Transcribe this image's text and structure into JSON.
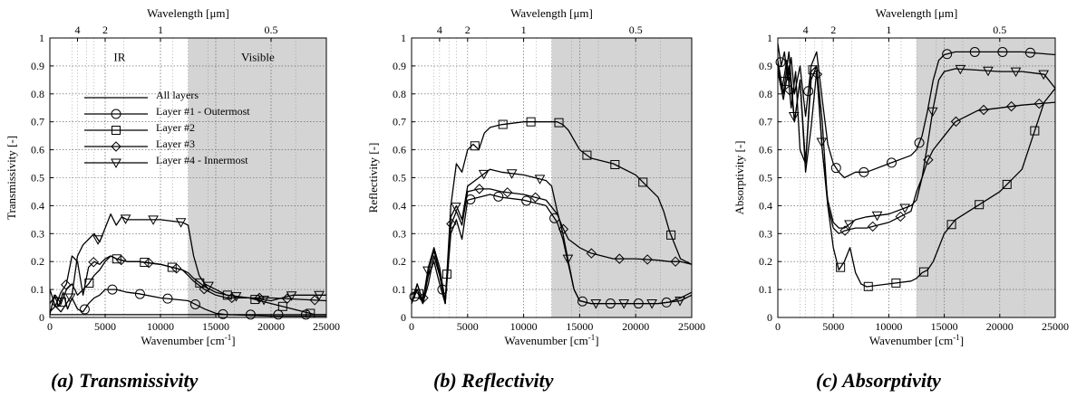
{
  "figure": {
    "captions": [
      "(a) Transmissivity",
      "(b) Reflectivity",
      "(c) Absorptivity"
    ]
  },
  "chart_data": [
    {
      "type": "line",
      "xlabel": "Wavenumber [cm-1]",
      "x2label": "Wavelength [μm]",
      "ylabel": "Transmissivity [-]",
      "xlim": [
        0,
        25000
      ],
      "ylim": [
        0,
        1
      ],
      "xticks": [
        "0",
        "5000",
        "10000",
        "15000",
        "20000",
        "25000"
      ],
      "yticks": [
        "0",
        "0.1",
        "0.2",
        "0.3",
        "0.4",
        "0.5",
        "0.6",
        "0.7",
        "0.8",
        "0.9",
        "1"
      ],
      "top_ticks": [
        {
          "label": "4",
          "um": 4
        },
        {
          "label": "2",
          "um": 2
        },
        {
          "label": "1",
          "um": 1
        },
        {
          "label": "0.5",
          "um": 0.5
        }
      ],
      "grid": true,
      "shaded_region": {
        "from": 12500,
        "to": 25000
      },
      "region_labels": [
        {
          "text": "IR",
          "x": 6300,
          "y": 0.93
        },
        {
          "text": "Visible",
          "x": 18800,
          "y": 0.93
        }
      ],
      "legend": {
        "placement": "center-left"
      },
      "series": [
        {
          "name": "All layers",
          "marker": "none",
          "x": [
            0,
            500,
            1000,
            2000,
            3000,
            4000,
            5000,
            6000,
            8000,
            10000,
            12000,
            12500,
            13000,
            14000,
            16000,
            20000,
            25000
          ],
          "y": [
            0.01,
            0.01,
            0.01,
            0.01,
            0.01,
            0.01,
            0.01,
            0.01,
            0.01,
            0.01,
            0.01,
            0.01,
            0.01,
            0.01,
            0.01,
            0.005,
            0.005
          ]
        },
        {
          "name": "Layer #1 - Outermost",
          "marker": "circle",
          "x": [
            0,
            400,
            800,
            1200,
            1600,
            2000,
            2500,
            3000,
            3500,
            4000,
            4500,
            5000,
            6000,
            7000,
            8000,
            10000,
            12500,
            13000,
            14000,
            15000,
            16000,
            18000,
            20000,
            22000,
            25000
          ],
          "y": [
            0.01,
            0.08,
            0.04,
            0.09,
            0.03,
            0.07,
            0.03,
            0.02,
            0.05,
            0.07,
            0.08,
            0.1,
            0.1,
            0.09,
            0.085,
            0.07,
            0.06,
            0.05,
            0.03,
            0.015,
            0.01,
            0.01,
            0.01,
            0.01,
            0.01
          ]
        },
        {
          "name": "Layer #2",
          "marker": "square",
          "x": [
            0,
            500,
            1000,
            1500,
            2000,
            2500,
            3000,
            3500,
            4000,
            4500,
            5000,
            5500,
            6000,
            7000,
            8000,
            10000,
            12000,
            12500,
            13000,
            14000,
            15000,
            16000,
            18000,
            20000,
            22000,
            24000,
            25000
          ],
          "y": [
            0.05,
            0.08,
            0.05,
            0.1,
            0.12,
            0.08,
            0.1,
            0.12,
            0.15,
            0.17,
            0.2,
            0.22,
            0.21,
            0.2,
            0.2,
            0.19,
            0.17,
            0.16,
            0.14,
            0.11,
            0.09,
            0.08,
            0.07,
            0.05,
            0.03,
            0.01,
            0.01
          ]
        },
        {
          "name": "Layer #3",
          "marker": "diamond",
          "x": [
            0,
            500,
            1000,
            1500,
            2000,
            2500,
            3000,
            3500,
            4000,
            4500,
            5000,
            5500,
            6000,
            7000,
            8000,
            10000,
            12000,
            12500,
            13000,
            14000,
            15000,
            16000,
            18000,
            20000,
            25000
          ],
          "y": [
            0.1,
            0.04,
            0.09,
            0.12,
            0.22,
            0.2,
            0.08,
            0.18,
            0.2,
            0.19,
            0.21,
            0.22,
            0.21,
            0.2,
            0.2,
            0.19,
            0.17,
            0.15,
            0.13,
            0.1,
            0.08,
            0.07,
            0.07,
            0.07,
            0.06
          ]
        },
        {
          "name": "Layer #4 - Innermost",
          "marker": "triangle-down",
          "x": [
            0,
            500,
            1000,
            1500,
            2000,
            2500,
            3000,
            3500,
            4000,
            4500,
            5000,
            5500,
            6000,
            6500,
            7000,
            8000,
            10000,
            12000,
            12500,
            13000,
            13500,
            14000,
            15000,
            16000,
            18000,
            20000,
            22000,
            25000
          ],
          "y": [
            0.02,
            0.04,
            0.02,
            0.05,
            0.08,
            0.22,
            0.26,
            0.28,
            0.3,
            0.27,
            0.32,
            0.37,
            0.33,
            0.36,
            0.35,
            0.35,
            0.35,
            0.34,
            0.33,
            0.22,
            0.15,
            0.12,
            0.1,
            0.08,
            0.07,
            0.06,
            0.08,
            0.08
          ]
        }
      ]
    },
    {
      "type": "line",
      "xlabel": "Wavenumber [cm-1]",
      "x2label": "Wavelength [μm]",
      "ylabel": "Reflectivity [-]",
      "xlim": [
        0,
        25000
      ],
      "ylim": [
        0,
        1
      ],
      "xticks": [
        "0",
        "5000",
        "10000",
        "15000",
        "20000",
        "25000"
      ],
      "yticks": [
        "0",
        "0.1",
        "0.2",
        "0.3",
        "0.4",
        "0.5",
        "0.6",
        "0.7",
        "0.8",
        "0.9",
        "1"
      ],
      "top_ticks": [
        {
          "label": "4",
          "um": 4
        },
        {
          "label": "2",
          "um": 2
        },
        {
          "label": "1",
          "um": 1
        },
        {
          "label": "0.5",
          "um": 0.5
        }
      ],
      "grid": true,
      "shaded_region": {
        "from": 12500,
        "to": 25000
      },
      "series": [
        {
          "name": "Layer #1 - Outermost",
          "marker": "circle",
          "x": [
            0,
            500,
            1000,
            1500,
            2000,
            2500,
            3000,
            3500,
            4000,
            4500,
            5000,
            6000,
            7000,
            8000,
            10000,
            12000,
            13000,
            13500,
            14000,
            14500,
            15000,
            16000,
            18000,
            20000,
            22000,
            23000,
            24000,
            25000
          ],
          "y": [
            0.05,
            0.1,
            0.05,
            0.12,
            0.22,
            0.15,
            0.05,
            0.3,
            0.35,
            0.28,
            0.42,
            0.43,
            0.44,
            0.43,
            0.42,
            0.4,
            0.34,
            0.28,
            0.19,
            0.1,
            0.06,
            0.05,
            0.05,
            0.05,
            0.05,
            0.055,
            0.07,
            0.09
          ]
        },
        {
          "name": "Layer #2",
          "marker": "square",
          "x": [
            0,
            500,
            1000,
            1500,
            2000,
            2500,
            3000,
            3500,
            4000,
            4500,
            5000,
            5500,
            6000,
            6500,
            7000,
            8000,
            10000,
            12000,
            13000,
            13500,
            14000,
            15000,
            16000,
            18000,
            20000,
            21000,
            22000,
            22500,
            23000,
            24000,
            25000
          ],
          "y": [
            0.08,
            0.1,
            0.05,
            0.15,
            0.2,
            0.12,
            0.05,
            0.4,
            0.55,
            0.52,
            0.6,
            0.62,
            0.6,
            0.66,
            0.68,
            0.69,
            0.7,
            0.7,
            0.7,
            0.69,
            0.67,
            0.6,
            0.57,
            0.55,
            0.51,
            0.47,
            0.43,
            0.38,
            0.31,
            0.21,
            0.19
          ]
        },
        {
          "name": "Layer #3",
          "marker": "diamond",
          "x": [
            0,
            500,
            1000,
            1500,
            2000,
            2500,
            3000,
            3500,
            4000,
            4500,
            5000,
            6000,
            7000,
            8000,
            10000,
            12000,
            13000,
            13500,
            14000,
            15000,
            16000,
            18000,
            20000,
            22000,
            23000,
            24000,
            25000
          ],
          "y": [
            0.05,
            0.12,
            0.06,
            0.16,
            0.24,
            0.16,
            0.05,
            0.33,
            0.38,
            0.33,
            0.45,
            0.46,
            0.46,
            0.45,
            0.44,
            0.42,
            0.37,
            0.32,
            0.28,
            0.25,
            0.23,
            0.21,
            0.21,
            0.205,
            0.2,
            0.2,
            0.19
          ]
        },
        {
          "name": "Layer #4 - Innermost",
          "marker": "triangle-down",
          "x": [
            0,
            500,
            1000,
            1500,
            2000,
            2500,
            3000,
            3500,
            4000,
            4500,
            5000,
            6000,
            7000,
            8000,
            10000,
            12000,
            12500,
            13000,
            13500,
            14000,
            14500,
            15000,
            16000,
            18000,
            20000,
            22000,
            24000,
            25000
          ],
          "y": [
            0.05,
            0.12,
            0.06,
            0.18,
            0.25,
            0.18,
            0.06,
            0.36,
            0.4,
            0.35,
            0.47,
            0.5,
            0.53,
            0.52,
            0.51,
            0.49,
            0.47,
            0.38,
            0.3,
            0.2,
            0.1,
            0.06,
            0.05,
            0.05,
            0.05,
            0.05,
            0.06,
            0.08
          ]
        }
      ]
    },
    {
      "type": "line",
      "xlabel": "Wavenumber [cm-1]",
      "x2label": "Wavelength [μm]",
      "ylabel": "Absorptivity [-]",
      "xlim": [
        0,
        25000
      ],
      "ylim": [
        0,
        1
      ],
      "xticks": [
        "0",
        "5000",
        "10000",
        "15000",
        "20000",
        "25000"
      ],
      "yticks": [
        "0",
        "0.1",
        "0.2",
        "0.3",
        "0.4",
        "0.5",
        "0.6",
        "0.7",
        "0.8",
        "0.9",
        "1"
      ],
      "top_ticks": [
        {
          "label": "4",
          "um": 4
        },
        {
          "label": "2",
          "um": 2
        },
        {
          "label": "1",
          "um": 1
        },
        {
          "label": "0.5",
          "um": 0.5
        }
      ],
      "grid": true,
      "shaded_region": {
        "from": 12500,
        "to": 25000
      },
      "series": [
        {
          "name": "Layer #1 - Outermost",
          "marker": "circle",
          "x": [
            0,
            300,
            600,
            900,
            1200,
            1500,
            2000,
            2500,
            3000,
            3500,
            4000,
            4500,
            5000,
            5500,
            6000,
            7000,
            8000,
            10000,
            12000,
            12500,
            13000,
            13500,
            14000,
            14500,
            15000,
            16000,
            18000,
            20000,
            22000,
            25000
          ],
          "y": [
            0.98,
            0.9,
            0.95,
            0.85,
            0.93,
            0.8,
            0.9,
            0.72,
            0.9,
            0.95,
            0.78,
            0.62,
            0.55,
            0.52,
            0.5,
            0.52,
            0.52,
            0.55,
            0.58,
            0.6,
            0.65,
            0.74,
            0.85,
            0.92,
            0.94,
            0.95,
            0.95,
            0.95,
            0.95,
            0.94
          ]
        },
        {
          "name": "Layer #2",
          "marker": "square",
          "x": [
            0,
            500,
            1000,
            1500,
            2000,
            2500,
            3000,
            3500,
            4000,
            4500,
            5000,
            5500,
            6000,
            6500,
            7000,
            7500,
            8000,
            10000,
            12000,
            12500,
            13000,
            13500,
            14000,
            15000,
            16000,
            18000,
            20000,
            22000,
            23000,
            24000,
            25000
          ],
          "y": [
            0.92,
            0.8,
            0.95,
            0.7,
            0.85,
            0.55,
            0.88,
            0.9,
            0.7,
            0.4,
            0.25,
            0.17,
            0.2,
            0.25,
            0.16,
            0.12,
            0.11,
            0.12,
            0.13,
            0.14,
            0.16,
            0.17,
            0.2,
            0.3,
            0.35,
            0.4,
            0.45,
            0.53,
            0.65,
            0.77,
            0.82
          ]
        },
        {
          "name": "Layer #3",
          "marker": "diamond",
          "x": [
            0,
            400,
            800,
            1200,
            1600,
            2000,
            2500,
            3000,
            3500,
            4000,
            4500,
            5000,
            5500,
            6000,
            7000,
            8000,
            10000,
            12000,
            12500,
            13000,
            13500,
            14000,
            15000,
            16000,
            18000,
            20000,
            22000,
            25000
          ],
          "y": [
            0.9,
            0.82,
            0.92,
            0.75,
            0.88,
            0.6,
            0.55,
            0.85,
            0.9,
            0.6,
            0.4,
            0.32,
            0.3,
            0.31,
            0.32,
            0.32,
            0.34,
            0.38,
            0.45,
            0.5,
            0.56,
            0.6,
            0.65,
            0.7,
            0.74,
            0.75,
            0.76,
            0.77
          ]
        },
        {
          "name": "Layer #4 - Innermost",
          "marker": "triangle-down",
          "x": [
            0,
            500,
            1000,
            1500,
            2000,
            2500,
            3000,
            3500,
            4000,
            4500,
            5000,
            5500,
            6000,
            7000,
            8000,
            10000,
            12000,
            12500,
            13000,
            13500,
            14000,
            14500,
            15000,
            16000,
            18000,
            20000,
            22000,
            24000,
            25000
          ],
          "y": [
            0.88,
            0.78,
            0.9,
            0.7,
            0.85,
            0.52,
            0.68,
            0.88,
            0.6,
            0.42,
            0.34,
            0.32,
            0.32,
            0.35,
            0.36,
            0.37,
            0.4,
            0.42,
            0.5,
            0.62,
            0.75,
            0.85,
            0.88,
            0.89,
            0.885,
            0.88,
            0.88,
            0.87,
            0.82
          ]
        }
      ]
    }
  ]
}
